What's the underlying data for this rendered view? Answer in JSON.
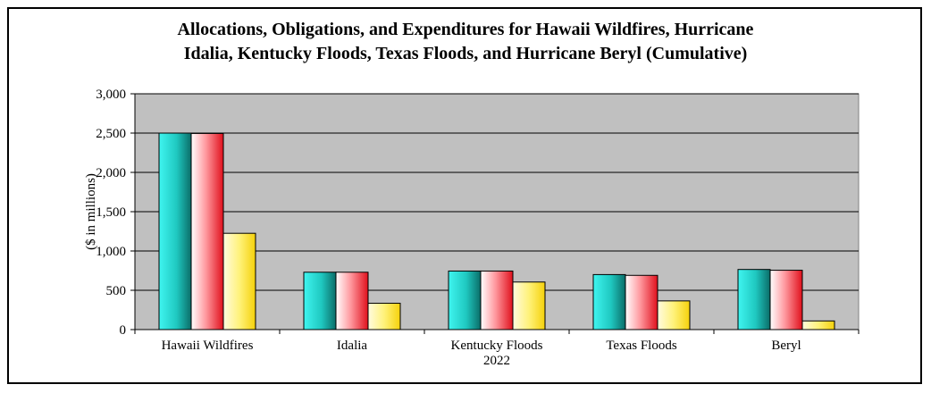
{
  "chart_data": {
    "type": "bar",
    "title_line1": "Allocations, Obligations, and Expenditures for Hawaii Wildfires, Hurricane",
    "title_line2": "Idalia, Kentucky Floods, Texas Floods, and Hurricane Beryl (Cumulative)",
    "ylabel": "($ in millions)",
    "xlabel": "",
    "ylim": [
      0,
      3000
    ],
    "yticks": [
      0,
      500,
      1000,
      1500,
      2000,
      2500,
      3000
    ],
    "ytick_labels": [
      "0",
      "500",
      "1,000",
      "1,500",
      "2,000",
      "2,500",
      "3,000"
    ],
    "grid": true,
    "plot_background": "#c0c0c0",
    "categories": [
      [
        "Hawaii Wildfires"
      ],
      [
        "Idalia"
      ],
      [
        "Kentucky Floods",
        "2022"
      ],
      [
        "Texas Floods"
      ],
      [
        "Beryl"
      ]
    ],
    "series": [
      {
        "values": [
          2500,
          730,
          745,
          700,
          765
        ],
        "color": "#1fc8c0"
      },
      {
        "values": [
          2495,
          730,
          745,
          690,
          755
        ],
        "color": "#f0606a"
      },
      {
        "values": [
          1225,
          335,
          605,
          365,
          110
        ],
        "color": "#fde44e"
      }
    ]
  }
}
